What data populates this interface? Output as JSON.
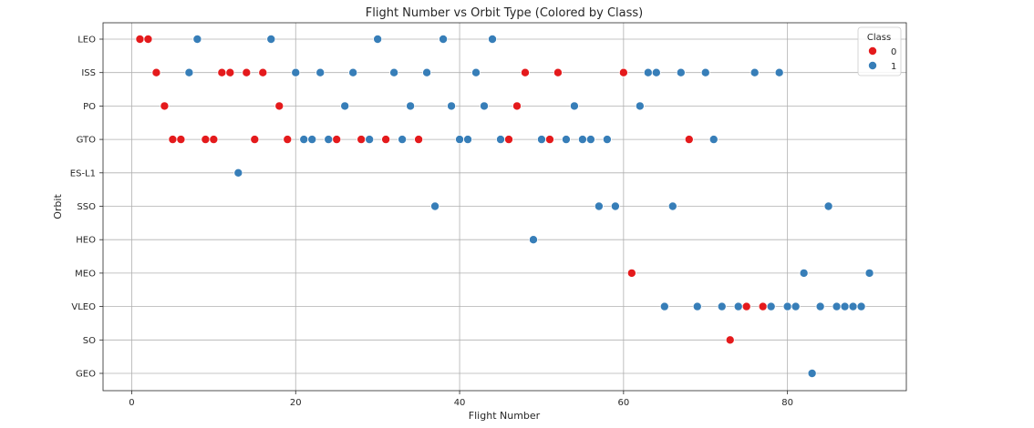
{
  "chart_data": {
    "type": "scatter",
    "title": "Flight Number vs Orbit Type (Colored by Class)",
    "xlabel": "Flight Number",
    "ylabel": "Orbit",
    "xlim": [
      -3.5,
      94.5
    ],
    "xticks": [
      0,
      20,
      40,
      60,
      80
    ],
    "categories": [
      "LEO",
      "ISS",
      "PO",
      "GTO",
      "ES-L1",
      "SSO",
      "HEO",
      "MEO",
      "VLEO",
      "SO",
      "GEO"
    ],
    "grid": true,
    "legend": {
      "title": "Class",
      "placement": "top-right"
    },
    "series": [
      {
        "name": "0",
        "color": "#e41a1c",
        "points": [
          {
            "x": 1,
            "y": "LEO"
          },
          {
            "x": 2,
            "y": "LEO"
          },
          {
            "x": 3,
            "y": "ISS"
          },
          {
            "x": 11,
            "y": "ISS"
          },
          {
            "x": 12,
            "y": "ISS"
          },
          {
            "x": 14,
            "y": "ISS"
          },
          {
            "x": 16,
            "y": "ISS"
          },
          {
            "x": 48,
            "y": "ISS"
          },
          {
            "x": 52,
            "y": "ISS"
          },
          {
            "x": 60,
            "y": "ISS"
          },
          {
            "x": 4,
            "y": "PO"
          },
          {
            "x": 18,
            "y": "PO"
          },
          {
            "x": 47,
            "y": "PO"
          },
          {
            "x": 5,
            "y": "GTO"
          },
          {
            "x": 6,
            "y": "GTO"
          },
          {
            "x": 9,
            "y": "GTO"
          },
          {
            "x": 10,
            "y": "GTO"
          },
          {
            "x": 15,
            "y": "GTO"
          },
          {
            "x": 19,
            "y": "GTO"
          },
          {
            "x": 25,
            "y": "GTO"
          },
          {
            "x": 28,
            "y": "GTO"
          },
          {
            "x": 31,
            "y": "GTO"
          },
          {
            "x": 35,
            "y": "GTO"
          },
          {
            "x": 46,
            "y": "GTO"
          },
          {
            "x": 51,
            "y": "GTO"
          },
          {
            "x": 68,
            "y": "GTO"
          },
          {
            "x": 61,
            "y": "MEO"
          },
          {
            "x": 75,
            "y": "VLEO"
          },
          {
            "x": 77,
            "y": "VLEO"
          },
          {
            "x": 73,
            "y": "SO"
          }
        ]
      },
      {
        "name": "1",
        "color": "#377eb8",
        "points": [
          {
            "x": 8,
            "y": "LEO"
          },
          {
            "x": 17,
            "y": "LEO"
          },
          {
            "x": 30,
            "y": "LEO"
          },
          {
            "x": 38,
            "y": "LEO"
          },
          {
            "x": 44,
            "y": "LEO"
          },
          {
            "x": 7,
            "y": "ISS"
          },
          {
            "x": 20,
            "y": "ISS"
          },
          {
            "x": 23,
            "y": "ISS"
          },
          {
            "x": 27,
            "y": "ISS"
          },
          {
            "x": 32,
            "y": "ISS"
          },
          {
            "x": 36,
            "y": "ISS"
          },
          {
            "x": 42,
            "y": "ISS"
          },
          {
            "x": 63,
            "y": "ISS"
          },
          {
            "x": 64,
            "y": "ISS"
          },
          {
            "x": 67,
            "y": "ISS"
          },
          {
            "x": 70,
            "y": "ISS"
          },
          {
            "x": 76,
            "y": "ISS"
          },
          {
            "x": 79,
            "y": "ISS"
          },
          {
            "x": 26,
            "y": "PO"
          },
          {
            "x": 34,
            "y": "PO"
          },
          {
            "x": 39,
            "y": "PO"
          },
          {
            "x": 43,
            "y": "PO"
          },
          {
            "x": 54,
            "y": "PO"
          },
          {
            "x": 62,
            "y": "PO"
          },
          {
            "x": 21,
            "y": "GTO"
          },
          {
            "x": 22,
            "y": "GTO"
          },
          {
            "x": 24,
            "y": "GTO"
          },
          {
            "x": 29,
            "y": "GTO"
          },
          {
            "x": 33,
            "y": "GTO"
          },
          {
            "x": 40,
            "y": "GTO"
          },
          {
            "x": 41,
            "y": "GTO"
          },
          {
            "x": 45,
            "y": "GTO"
          },
          {
            "x": 50,
            "y": "GTO"
          },
          {
            "x": 53,
            "y": "GTO"
          },
          {
            "x": 55,
            "y": "GTO"
          },
          {
            "x": 56,
            "y": "GTO"
          },
          {
            "x": 58,
            "y": "GTO"
          },
          {
            "x": 71,
            "y": "GTO"
          },
          {
            "x": 13,
            "y": "ES-L1"
          },
          {
            "x": 37,
            "y": "SSO"
          },
          {
            "x": 57,
            "y": "SSO"
          },
          {
            "x": 59,
            "y": "SSO"
          },
          {
            "x": 66,
            "y": "SSO"
          },
          {
            "x": 85,
            "y": "SSO"
          },
          {
            "x": 49,
            "y": "HEO"
          },
          {
            "x": 82,
            "y": "MEO"
          },
          {
            "x": 90,
            "y": "MEO"
          },
          {
            "x": 65,
            "y": "VLEO"
          },
          {
            "x": 69,
            "y": "VLEO"
          },
          {
            "x": 72,
            "y": "VLEO"
          },
          {
            "x": 74,
            "y": "VLEO"
          },
          {
            "x": 78,
            "y": "VLEO"
          },
          {
            "x": 80,
            "y": "VLEO"
          },
          {
            "x": 81,
            "y": "VLEO"
          },
          {
            "x": 84,
            "y": "VLEO"
          },
          {
            "x": 86,
            "y": "VLEO"
          },
          {
            "x": 87,
            "y": "VLEO"
          },
          {
            "x": 88,
            "y": "VLEO"
          },
          {
            "x": 89,
            "y": "VLEO"
          },
          {
            "x": 83,
            "y": "GEO"
          }
        ]
      }
    ]
  }
}
